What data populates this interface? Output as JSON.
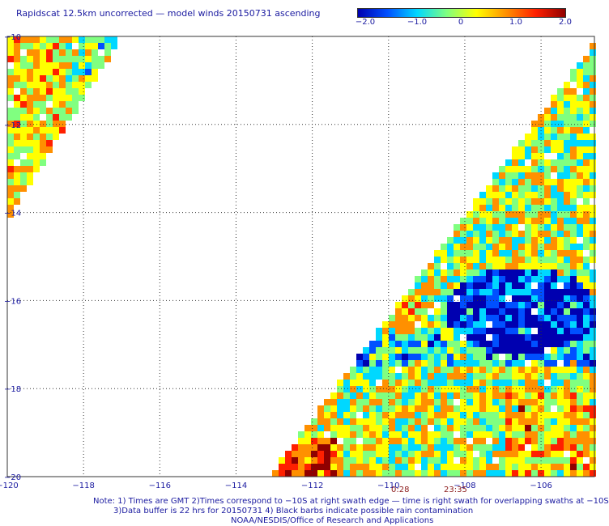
{
  "title": "Rapidscat 12.5km uncorrected — model winds 20150731 ascending",
  "colorbar": {
    "labels": [
      "−2.0",
      "−1.0",
      "0",
      "1.0",
      "2.0"
    ],
    "colors": [
      "#0000b0",
      "#0050ff",
      "#00d8ff",
      "#80ff80",
      "#ffff00",
      "#ff9000",
      "#ff2000",
      "#900000"
    ]
  },
  "map": {
    "x_ticks": [
      "−120",
      "−118",
      "−116",
      "−114",
      "−112",
      "−110",
      "−108",
      "−106"
    ],
    "y_ticks": [
      "−10",
      "−12",
      "−14",
      "−16",
      "−18",
      "−20"
    ],
    "lon_range": [
      -120,
      -104.6
    ],
    "lat_range": [
      -20,
      -10
    ]
  },
  "swath_times": [
    "0:28",
    "23:35"
  ],
  "notes": [
    "Note: 1) Times are GMT 2)Times correspond to −10S at right swath edge — time is right swath for overlapping swaths at −10S",
    "3)Data buffer is 22 hrs for 20150731 4) Black barbs indicate possible rain contamination",
    "NOAA/NESDIS/Office of Research and Applications"
  ]
}
